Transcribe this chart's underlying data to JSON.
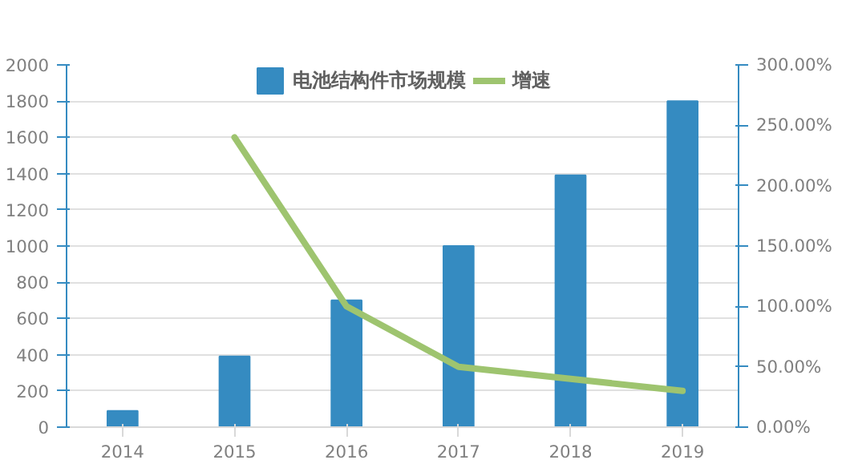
{
  "chart_data": {
    "type": "bar",
    "categories": [
      "2014",
      "2015",
      "2016",
      "2017",
      "2018",
      "2019"
    ],
    "series": [
      {
        "name": "电池结构件市场规模",
        "color": "#358bc1",
        "values": [
          90,
          390,
          700,
          1000,
          1390,
          1800
        ]
      },
      {
        "name": "增速",
        "type": "line",
        "axis": "y2",
        "color": "#9ec46f",
        "values": [
          null,
          240,
          100,
          50,
          40,
          30
        ]
      }
    ],
    "ylim": [
      0,
      2000
    ],
    "yticks": [
      0,
      200,
      400,
      600,
      800,
      1000,
      1200,
      1400,
      1600,
      1800,
      2000
    ],
    "y2lim": [
      0,
      300
    ],
    "y2ticks": [
      {
        "value": 0,
        "label": "0.00%"
      },
      {
        "value": 50,
        "label": "50.00%"
      },
      {
        "value": 100,
        "label": "100.00%"
      },
      {
        "value": 150,
        "label": "150.00%"
      },
      {
        "value": 200,
        "label": "200.00%"
      },
      {
        "value": 250,
        "label": "250.00%"
      },
      {
        "value": 300,
        "label": "300.00%"
      }
    ],
    "grid": "y",
    "legend": "top"
  }
}
